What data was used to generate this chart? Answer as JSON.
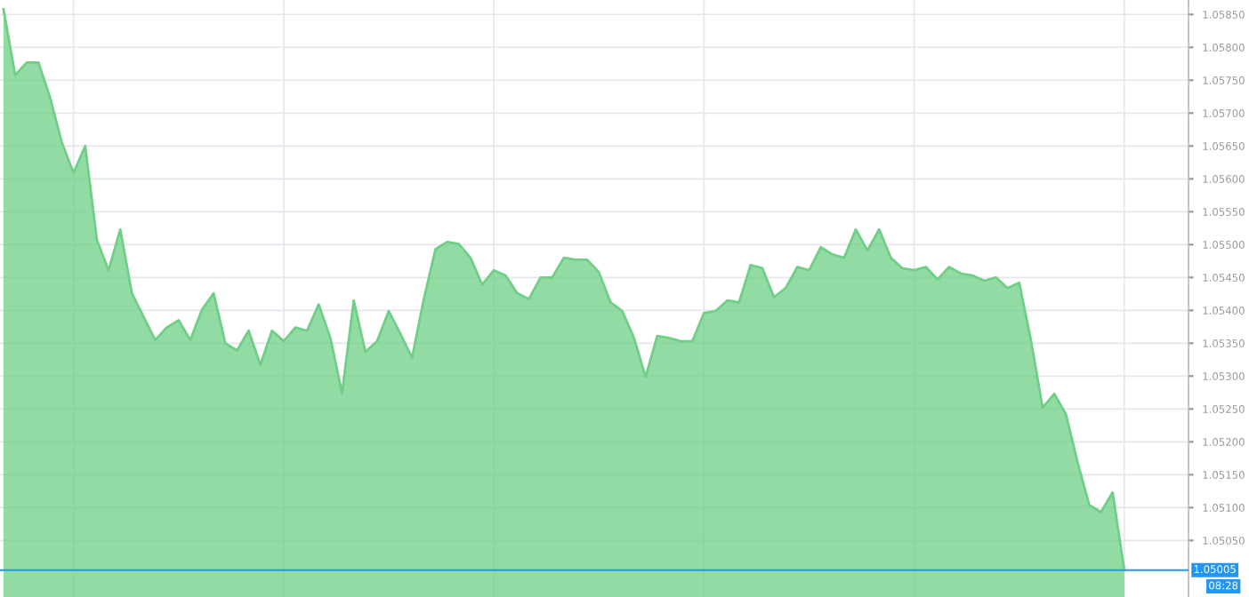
{
  "chart_data": {
    "type": "area",
    "categories": [
      null,
      null,
      null,
      null,
      null,
      null,
      null,
      null,
      null,
      null,
      null,
      null,
      null,
      null,
      null,
      null,
      null,
      null,
      null,
      null,
      null,
      null,
      null,
      null,
      null,
      null,
      null,
      null,
      null,
      null,
      null,
      null,
      null,
      null,
      null,
      null,
      null,
      null,
      null,
      null,
      null,
      null,
      null,
      null,
      null,
      null,
      null,
      null,
      null,
      null,
      null,
      null,
      null,
      null,
      null,
      null,
      null,
      null,
      null,
      null,
      null,
      null,
      null,
      null,
      null,
      null,
      null,
      null,
      null,
      null,
      null,
      null,
      null,
      null,
      null,
      null,
      null,
      null,
      null,
      null,
      null,
      null,
      null,
      null,
      null,
      null,
      null,
      null,
      null,
      null,
      null,
      null,
      null,
      null,
      null,
      null,
      null
    ],
    "series": [
      {
        "color": "#6fcf86",
        "values": [
          1.05858,
          1.05758,
          1.05777,
          1.05777,
          1.05723,
          1.05655,
          1.05609,
          1.0565,
          1.05507,
          1.05461,
          1.05523,
          1.05426,
          1.0539,
          1.05355,
          1.05374,
          1.05385,
          1.05355,
          1.05401,
          1.05426,
          1.0535,
          1.05339,
          1.05369,
          1.05317,
          1.05369,
          1.05353,
          1.05374,
          1.05369,
          1.05409,
          1.05358,
          1.05274,
          1.05415,
          1.05337,
          1.05353,
          1.05399,
          1.05364,
          1.05328,
          1.05417,
          1.05493,
          1.05504,
          1.05501,
          1.0548,
          1.05439,
          1.05461,
          1.05453,
          1.05426,
          1.05417,
          1.0545,
          1.0545,
          1.0548,
          1.05477,
          1.05477,
          1.05458,
          1.05412,
          1.05399,
          1.05358,
          1.05299,
          1.05361,
          1.05358,
          1.05353,
          1.05353,
          1.05396,
          1.05399,
          1.05415,
          1.05412,
          1.05469,
          1.05464,
          1.0542,
          1.05434,
          1.05466,
          1.05461,
          1.05496,
          1.05485,
          1.0548,
          1.05523,
          1.05491,
          1.05523,
          1.0548,
          1.05464,
          1.05461,
          1.05466,
          1.05447,
          1.05466,
          1.05456,
          1.05453,
          1.05445,
          1.0545,
          1.05434,
          1.05442,
          1.05355,
          1.05252,
          1.05273,
          1.05242,
          1.05169,
          1.05104,
          1.05093,
          1.05123,
          1.05005
        ]
      }
    ],
    "ylim": [
      1.04964,
      1.05872
    ],
    "yticks": [
      {
        "value": 1.0505,
        "label": "1.05050"
      },
      {
        "value": 1.051,
        "label": "1.05100"
      },
      {
        "value": 1.0515,
        "label": "1.05150"
      },
      {
        "value": 1.052,
        "label": "1.05200"
      },
      {
        "value": 1.0525,
        "label": "1.05250"
      },
      {
        "value": 1.053,
        "label": "1.05300"
      },
      {
        "value": 1.0535,
        "label": "1.05350"
      },
      {
        "value": 1.054,
        "label": "1.05400"
      },
      {
        "value": 1.0545,
        "label": "1.05450"
      },
      {
        "value": 1.055,
        "label": "1.05500"
      },
      {
        "value": 1.0555,
        "label": "1.05550"
      },
      {
        "value": 1.056,
        "label": "1.05600"
      },
      {
        "value": 1.0565,
        "label": "1.05650"
      },
      {
        "value": 1.057,
        "label": "1.05700"
      },
      {
        "value": 1.0575,
        "label": "1.05750"
      },
      {
        "value": 1.058,
        "label": "1.05800"
      },
      {
        "value": 1.0585,
        "label": "1.05850"
      }
    ],
    "ref_lines": [
      {
        "axis": "y",
        "value": 1.05005,
        "label": "1.05005",
        "color": "#2196f3"
      }
    ],
    "annotations": [
      "08:28"
    ],
    "grid": true,
    "tick_labels": "y"
  }
}
